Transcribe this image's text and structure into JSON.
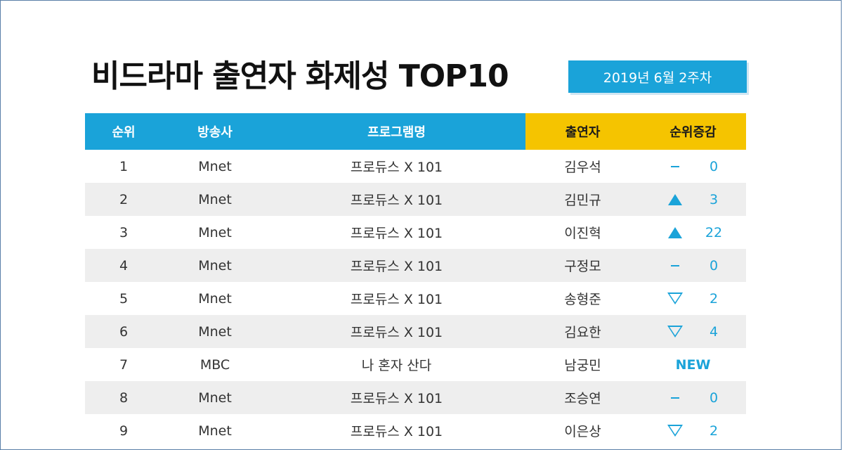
{
  "title": "비드라마 출연자 화제성 TOP10",
  "week": "2019년  6월 2주차",
  "colors": {
    "accent_blue": "#1aa3d9",
    "accent_yellow": "#f5c400",
    "row_alt": "#eeeeee"
  },
  "headers": {
    "rank": "순위",
    "channel": "방송사",
    "program": "프로그램명",
    "cast": "출연자",
    "change": "순위증감"
  },
  "rows": [
    {
      "rank": "1",
      "channel": "Mnet",
      "program": "프로듀스 X 101",
      "cast": "김우석",
      "dir": "same",
      "change": "0"
    },
    {
      "rank": "2",
      "channel": "Mnet",
      "program": "프로듀스 X 101",
      "cast": "김민규",
      "dir": "up",
      "change": "3"
    },
    {
      "rank": "3",
      "channel": "Mnet",
      "program": "프로듀스 X 101",
      "cast": "이진혁",
      "dir": "up",
      "change": "22"
    },
    {
      "rank": "4",
      "channel": "Mnet",
      "program": "프로듀스 X 101",
      "cast": "구정모",
      "dir": "same",
      "change": "0"
    },
    {
      "rank": "5",
      "channel": "Mnet",
      "program": "프로듀스 X 101",
      "cast": "송형준",
      "dir": "down",
      "change": "2"
    },
    {
      "rank": "6",
      "channel": "Mnet",
      "program": "프로듀스 X 101",
      "cast": "김요한",
      "dir": "down",
      "change": "4"
    },
    {
      "rank": "7",
      "channel": "MBC",
      "program": "나 혼자 산다",
      "cast": "남궁민",
      "dir": "new",
      "change": "NEW"
    },
    {
      "rank": "8",
      "channel": "Mnet",
      "program": "프로듀스 X 101",
      "cast": "조승연",
      "dir": "same",
      "change": "0"
    },
    {
      "rank": "9",
      "channel": "Mnet",
      "program": "프로듀스 X 101",
      "cast": "이은상",
      "dir": "down",
      "change": "2"
    }
  ]
}
